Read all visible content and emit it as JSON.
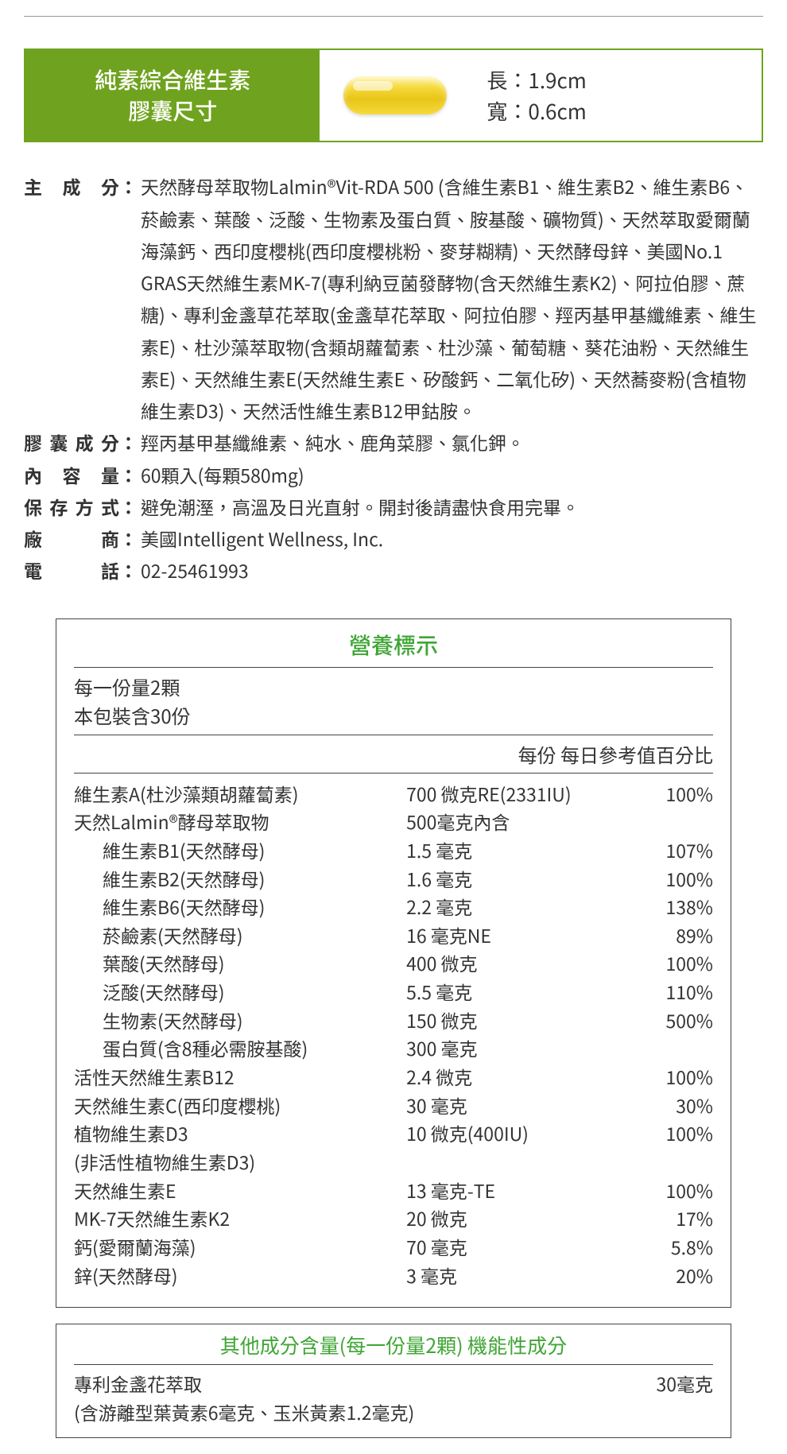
{
  "banner": {
    "title_line1": "純素綜合維生素",
    "title_line2": "膠囊尺寸",
    "length_label": "長：1.9cm",
    "width_label": "寬：0.6cm",
    "bg_color": "#6fa31f",
    "capsule_color_top": "#fef3a8",
    "capsule_color_bottom": "#e8c518"
  },
  "info": {
    "ingredients_label": "主 成 分",
    "ingredients_value": "天然酵母萃取物Lalmin®Vit-RDA 500 (含維生素B1、維生素B2、維生素B6、菸鹼素、葉酸、泛酸、生物素及蛋白質、胺基酸、礦物質)、天然萃取愛爾蘭海藻鈣、西印度櫻桃(西印度櫻桃粉、麥芽糊精)、天然酵母鋅、美國No.1 GRAS天然維生素MK-7(專利納豆菌發酵物(含天然維生素K2)、阿拉伯膠、蔗糖)、專利金盞草花萃取(金盞草花萃取、阿拉伯膠、羥丙基甲基纖維素、維生素E)、杜沙藻萃取物(含類胡蘿蔔素、杜沙藻、葡萄糖、葵花油粉、天然維生素E)、天然維生素E(天然維生素E、矽酸鈣、二氧化矽)、天然蕎麥粉(含植物維生素D3)、天然活性維生素B12甲鈷胺。",
    "capsule_label": "膠囊成分",
    "capsule_value": "羥丙基甲基纖維素、純水、鹿角菜膠、氯化鉀。",
    "content_label": "內 容 量",
    "content_value": "60顆入(每顆580mg)",
    "storage_label": "保存方式",
    "storage_value": "避免潮溼，高溫及日光直射。開封後請盡快食用完畢。",
    "manufacturer_label": "廠　　商",
    "manufacturer_value": "美國Intelligent Wellness, Inc.",
    "phone_label": "電　　話",
    "phone_value": "02-25461993"
  },
  "nutrition": {
    "title": "營養標示",
    "serving_line1": "每一份量2顆",
    "serving_line2": "本包裝含30份",
    "header": "每份 每日參考值百分比",
    "rows": [
      {
        "name": "維生素A(杜沙藻類胡蘿蔔素)",
        "amt": "700 微克RE(2331IU)",
        "pct": "100%",
        "indent": false
      },
      {
        "name": "天然Lalmin®酵母萃取物",
        "amt": "500毫克內含",
        "pct": "",
        "indent": false
      },
      {
        "name": "維生素B1(天然酵母)",
        "amt": "1.5 毫克",
        "pct": "107%",
        "indent": true
      },
      {
        "name": "維生素B2(天然酵母)",
        "amt": "1.6 毫克",
        "pct": "100%",
        "indent": true
      },
      {
        "name": "維生素B6(天然酵母)",
        "amt": "2.2 毫克",
        "pct": "138%",
        "indent": true
      },
      {
        "name": "菸鹼素(天然酵母)",
        "amt": "16 毫克NE",
        "pct": "89%",
        "indent": true
      },
      {
        "name": "葉酸(天然酵母)",
        "amt": "400 微克",
        "pct": "100%",
        "indent": true
      },
      {
        "name": "泛酸(天然酵母)",
        "amt": "5.5 毫克",
        "pct": "110%",
        "indent": true
      },
      {
        "name": "生物素(天然酵母)",
        "amt": "150 微克",
        "pct": "500%",
        "indent": true
      },
      {
        "name": "蛋白質(含8種必需胺基酸)",
        "amt": "300 毫克",
        "pct": "",
        "indent": true
      },
      {
        "name": "活性天然維生素B12",
        "amt": "2.4 微克",
        "pct": "100%",
        "indent": false
      },
      {
        "name": "天然維生素C(西印度櫻桃)",
        "amt": "30 毫克",
        "pct": "30%",
        "indent": false
      },
      {
        "name": "植物維生素D3",
        "amt": "10 微克(400IU)",
        "pct": "100%",
        "indent": false
      },
      {
        "name": "(非活性植物維生素D3)",
        "amt": "",
        "pct": "",
        "indent": false
      },
      {
        "name": "天然維生素E",
        "amt": "13 毫克-TE",
        "pct": "100%",
        "indent": false
      },
      {
        "name": "MK-7天然維生素K2",
        "amt": "20 微克",
        "pct": "17%",
        "indent": false
      },
      {
        "name": "鈣(愛爾蘭海藻)",
        "amt": "70 毫克",
        "pct": "5.8%",
        "indent": false
      },
      {
        "name": "鋅(天然酵母)",
        "amt": "3 毫克",
        "pct": "20%",
        "indent": false
      }
    ]
  },
  "other": {
    "title": "其他成分含量(每一份量2顆) 機能性成分",
    "name_line1": "專利金盞花萃取",
    "name_line2": "(含游離型葉黃素6毫克、玉米黃素1.2毫克)",
    "amount": "30毫克"
  },
  "colors": {
    "accent_green_text": "#3fa535",
    "border": "#444444",
    "body_text": "#333333"
  }
}
